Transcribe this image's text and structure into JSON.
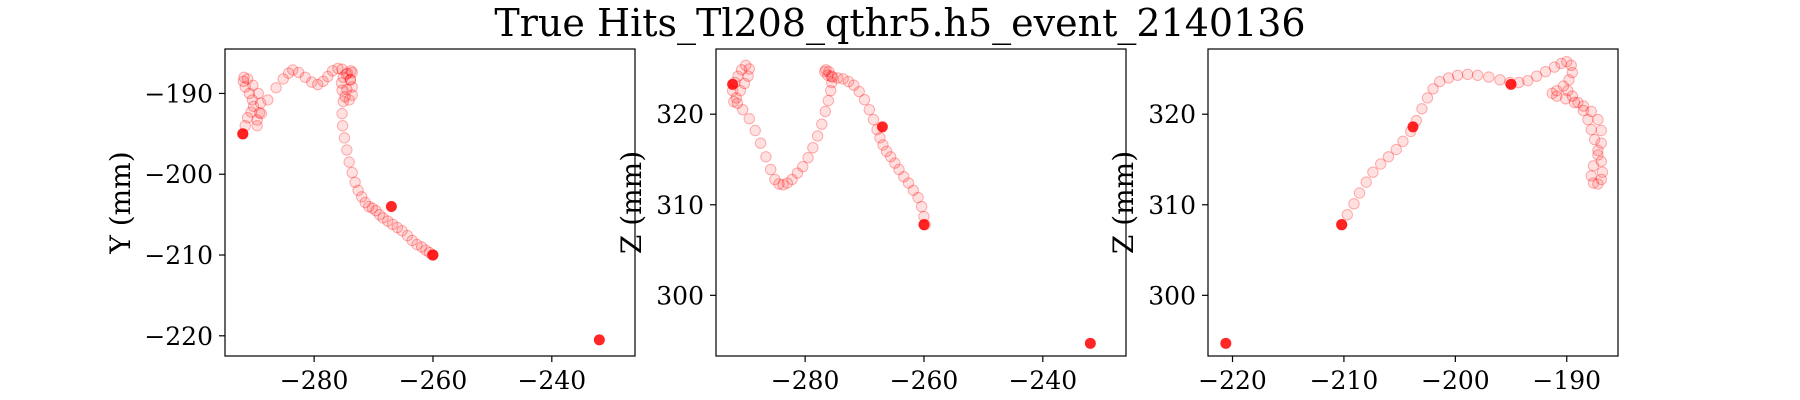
{
  "figure": {
    "title": "True Hits_Tl208_qthr5.h5_event_2140136"
  },
  "chart_data": [
    {
      "type": "scatter",
      "title": "",
      "xlabel": "",
      "ylabel": "Y (mm)",
      "xlim": [
        -295,
        -226
      ],
      "ylim": [
        -222.5,
        -184.5
      ],
      "xticks": [
        -280,
        -260,
        -240
      ],
      "yticks": [
        -220,
        -210,
        -200,
        -190
      ],
      "color": "#ff0000",
      "track": {
        "x": [
          -292,
          -291.6,
          -291.2,
          -290.6,
          -290.2,
          -290.4,
          -290.9,
          -291.6,
          -291.9,
          -291.8,
          -291.2,
          -290.3,
          -289.4,
          -289.0,
          -289.2,
          -289.6,
          -289.6,
          -288.9,
          -287.8,
          -286.4,
          -285.2,
          -284.3,
          -283.6,
          -282.6,
          -281.5,
          -280.4,
          -279.4,
          -278.5,
          -277.7,
          -276.9,
          -276.0,
          -275.3,
          -274.6,
          -273.9,
          -273.6,
          -273.6,
          -274.1,
          -274.8,
          -275.3,
          -275.4,
          -275.1,
          -274.4,
          -273.8,
          -273.6,
          -273.9,
          -274.5,
          -275.1,
          -275.3,
          -275.2,
          -274.9,
          -274.5,
          -274.1,
          -273.6,
          -273.1,
          -272.6,
          -272.0,
          -271.4,
          -270.8,
          -270.2,
          -269.6,
          -269.0,
          -268.4,
          -267.6,
          -266.8,
          -266.0,
          -265.2,
          -264.3,
          -263.5,
          -262.7,
          -261.9,
          -261.2,
          -260.6,
          -260.1
        ],
        "y": [
          -195.0,
          -194.0,
          -193.0,
          -192.3,
          -191.6,
          -190.8,
          -190.0,
          -189.2,
          -188.5,
          -188.0,
          -188.2,
          -189.0,
          -190.0,
          -191.2,
          -192.4,
          -193.3,
          -194.0,
          -192.5,
          -190.8,
          -189.3,
          -188.2,
          -187.5,
          -187.1,
          -187.4,
          -188.0,
          -188.6,
          -188.9,
          -188.5,
          -187.9,
          -187.2,
          -186.9,
          -187.0,
          -187.6,
          -188.3,
          -189.2,
          -190.2,
          -190.8,
          -190.4,
          -189.6,
          -188.7,
          -188.0,
          -187.5,
          -187.2,
          -187.4,
          -188.3,
          -189.5,
          -191.0,
          -192.5,
          -194.0,
          -195.5,
          -197.0,
          -198.5,
          -199.8,
          -201.0,
          -202.0,
          -202.8,
          -203.5,
          -204.0,
          -204.2,
          -204.5,
          -205.0,
          -205.4,
          -205.8,
          -206.2,
          -206.6,
          -207.0,
          -207.6,
          -208.2,
          -208.7,
          -209.0,
          -209.4,
          -209.7,
          -210.0
        ]
      },
      "highlights": {
        "x": [
          -292,
          -267,
          -260,
          -232
        ],
        "y": [
          -195,
          -204,
          -210,
          -220.5
        ]
      }
    },
    {
      "type": "scatter",
      "title": "",
      "xlabel": "",
      "ylabel": "Z (mm)",
      "xlim": [
        -295,
        -226
      ],
      "ylim": [
        293.3,
        327.2
      ],
      "xticks": [
        -280,
        -260,
        -240
      ],
      "yticks": [
        300,
        310,
        320
      ],
      "color": "#ff0000",
      "track": {
        "x": [
          -292.2,
          -291.8,
          -291.3,
          -290.7,
          -290.0,
          -289.4,
          -289.6,
          -290.2,
          -290.9,
          -291.6,
          -292.0,
          -291.4,
          -290.5,
          -289.4,
          -288.4,
          -287.5,
          -286.6,
          -285.8,
          -285.1,
          -284.4,
          -283.7,
          -283.0,
          -282.2,
          -281.3,
          -280.4,
          -279.5,
          -278.7,
          -277.9,
          -277.2,
          -276.6,
          -276.1,
          -275.7,
          -275.5,
          -275.6,
          -276.0,
          -276.5,
          -276.7,
          -276.2,
          -275.4,
          -274.5,
          -273.6,
          -272.7,
          -271.8,
          -270.9,
          -270.0,
          -269.2,
          -268.5,
          -267.9,
          -267.4,
          -266.9,
          -266.3,
          -265.6,
          -264.9,
          -264.2,
          -263.4,
          -262.6,
          -261.8,
          -261.0,
          -260.4,
          -260.0,
          -259.8
        ],
        "y": [
          322.6,
          323.5,
          324.2,
          324.9,
          325.4,
          325.0,
          324.2,
          323.4,
          322.6,
          321.8,
          321.4,
          321.2,
          320.5,
          319.5,
          318.2,
          316.8,
          315.3,
          313.9,
          312.8,
          312.3,
          312.2,
          312.4,
          312.8,
          313.5,
          314.2,
          315.2,
          316.3,
          317.6,
          318.9,
          320.3,
          321.5,
          322.6,
          323.5,
          324.2,
          324.7,
          324.9,
          324.7,
          324.3,
          324.1,
          324.0,
          323.9,
          323.6,
          323.2,
          322.5,
          321.6,
          320.5,
          319.4,
          318.3,
          317.4,
          316.6,
          315.9,
          315.3,
          314.6,
          313.9,
          313.1,
          312.4,
          311.6,
          310.8,
          309.8,
          308.7,
          307.8
        ]
      },
      "highlights": {
        "x": [
          -292.2,
          -267,
          -260,
          -232
        ],
        "y": [
          323.3,
          318.6,
          307.8,
          294.7
        ]
      }
    },
    {
      "type": "scatter",
      "title": "",
      "xlabel": "",
      "ylabel": "Z (mm)",
      "xlim": [
        -222.2,
        -185.4
      ],
      "ylim": [
        293.3,
        327.2
      ],
      "xticks": [
        -220,
        -210,
        -200,
        -190
      ],
      "yticks": [
        300,
        310,
        320
      ],
      "color": "#ff0000",
      "track": {
        "x": [
          -210.2,
          -209.7,
          -209.1,
          -208.6,
          -208.0,
          -207.4,
          -206.7,
          -206.0,
          -205.3,
          -204.7,
          -204.0,
          -203.5,
          -203.0,
          -202.5,
          -202.0,
          -201.4,
          -200.6,
          -199.8,
          -198.9,
          -198.0,
          -197.0,
          -196.0,
          -195.1,
          -194.3,
          -193.5,
          -192.7,
          -191.9,
          -191.1,
          -190.5,
          -190.0,
          -189.6,
          -189.5,
          -189.8,
          -190.3,
          -190.9,
          -191.3,
          -190.9,
          -190.1,
          -189.3,
          -188.5,
          -187.8,
          -187.2,
          -186.9,
          -186.9,
          -187.2,
          -187.6,
          -187.8,
          -187.6,
          -187.2,
          -186.9,
          -186.8,
          -186.9,
          -187.2,
          -187.5,
          -187.8,
          -188.1,
          -188.5,
          -189.0,
          -189.5,
          -189.9
        ],
        "y": [
          307.8,
          308.9,
          310.1,
          311.3,
          312.5,
          313.6,
          314.5,
          315.3,
          316.1,
          317.0,
          318.1,
          319.3,
          320.6,
          321.8,
          322.8,
          323.6,
          324.0,
          324.3,
          324.4,
          324.3,
          324.1,
          323.8,
          323.5,
          323.5,
          323.7,
          324.2,
          324.7,
          325.2,
          325.6,
          325.8,
          325.4,
          324.6,
          323.8,
          323.1,
          322.6,
          322.3,
          322.0,
          321.7,
          321.3,
          320.9,
          320.3,
          319.4,
          318.2,
          316.8,
          315.5,
          314.3,
          313.2,
          312.4,
          312.3,
          312.8,
          313.6,
          314.8,
          316.0,
          317.2,
          318.3,
          319.4,
          320.4,
          321.3,
          322.0,
          322.6
        ]
      },
      "highlights": {
        "x": [
          -220.6,
          -210.2,
          -203.8,
          -195
        ],
        "y": [
          294.7,
          307.8,
          318.6,
          323.3
        ]
      }
    }
  ]
}
